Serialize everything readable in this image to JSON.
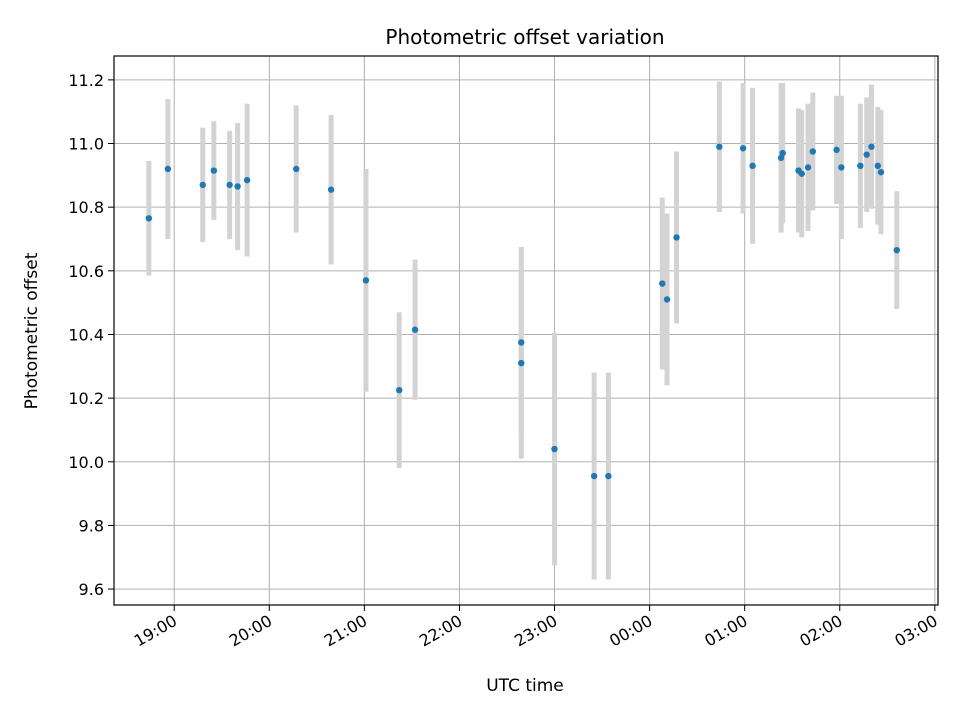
{
  "chart_data": {
    "type": "scatter",
    "title": "Photometric offset variation",
    "xlabel": "UTC time",
    "ylabel": "Photometric offset",
    "x_unit": "UTC clock time (hours after 18:00 on the first night)",
    "xlim": [
      "18:22",
      "03:02"
    ],
    "ylim": [
      9.55,
      11.275
    ],
    "x_ticks": [
      "19:00",
      "20:00",
      "21:00",
      "22:00",
      "23:00",
      "00:00",
      "01:00",
      "02:00",
      "03:00"
    ],
    "y_ticks": [
      "9.6",
      "9.8",
      "10.0",
      "10.2",
      "10.4",
      "10.6",
      "10.8",
      "11.0",
      "11.2"
    ],
    "grid": true,
    "colors": {
      "point": "#1f77b4",
      "errorbar": "#d3d3d3",
      "grid": "#b0b0b0",
      "axis": "#000000"
    },
    "series": [
      {
        "points": [
          {
            "x": "18:44",
            "y": 10.765,
            "err": 0.18
          },
          {
            "x": "18:56",
            "y": 10.92,
            "err": 0.22
          },
          {
            "x": "19:18",
            "y": 10.87,
            "err": 0.18
          },
          {
            "x": "19:25",
            "y": 10.915,
            "err": 0.155
          },
          {
            "x": "19:35",
            "y": 10.87,
            "err": 0.17
          },
          {
            "x": "19:40",
            "y": 10.865,
            "err": 0.2
          },
          {
            "x": "19:46",
            "y": 10.885,
            "err": 0.24
          },
          {
            "x": "20:17",
            "y": 10.92,
            "err": 0.2
          },
          {
            "x": "20:39",
            "y": 10.855,
            "err": 0.235
          },
          {
            "x": "21:01",
            "y": 10.57,
            "err": 0.35
          },
          {
            "x": "21:22",
            "y": 10.225,
            "err": 0.245
          },
          {
            "x": "21:32",
            "y": 10.415,
            "err": 0.22
          },
          {
            "x": "22:39",
            "y": 10.375,
            "err": 0.3
          },
          {
            "x": "22:39",
            "y": 10.31,
            "err": 0.3
          },
          {
            "x": "23:00",
            "y": 10.04,
            "err": 0.365
          },
          {
            "x": "23:25",
            "y": 9.955,
            "err": 0.325
          },
          {
            "x": "23:34",
            "y": 9.955,
            "err": 0.325
          },
          {
            "x": "00:08",
            "y": 10.56,
            "err": 0.27
          },
          {
            "x": "00:11",
            "y": 10.51,
            "err": 0.27
          },
          {
            "x": "00:17",
            "y": 10.705,
            "err": 0.27
          },
          {
            "x": "00:44",
            "y": 10.99,
            "err": 0.205
          },
          {
            "x": "00:59",
            "y": 10.985,
            "err": 0.205
          },
          {
            "x": "01:05",
            "y": 10.93,
            "err": 0.245
          },
          {
            "x": "01:23",
            "y": 10.955,
            "err": 0.235
          },
          {
            "x": "01:24",
            "y": 10.97,
            "err": 0.22
          },
          {
            "x": "01:34",
            "y": 10.915,
            "err": 0.195
          },
          {
            "x": "01:36",
            "y": 10.905,
            "err": 0.2
          },
          {
            "x": "01:40",
            "y": 10.925,
            "err": 0.2
          },
          {
            "x": "01:43",
            "y": 10.975,
            "err": 0.185
          },
          {
            "x": "01:58",
            "y": 10.98,
            "err": 0.17
          },
          {
            "x": "02:01",
            "y": 10.925,
            "err": 0.225
          },
          {
            "x": "02:13",
            "y": 10.93,
            "err": 0.195
          },
          {
            "x": "02:17",
            "y": 10.965,
            "err": 0.18
          },
          {
            "x": "02:20",
            "y": 10.99,
            "err": 0.195
          },
          {
            "x": "02:24",
            "y": 10.93,
            "err": 0.185
          },
          {
            "x": "02:26",
            "y": 10.91,
            "err": 0.195
          },
          {
            "x": "02:36",
            "y": 10.665,
            "err": 0.185
          }
        ]
      }
    ]
  }
}
